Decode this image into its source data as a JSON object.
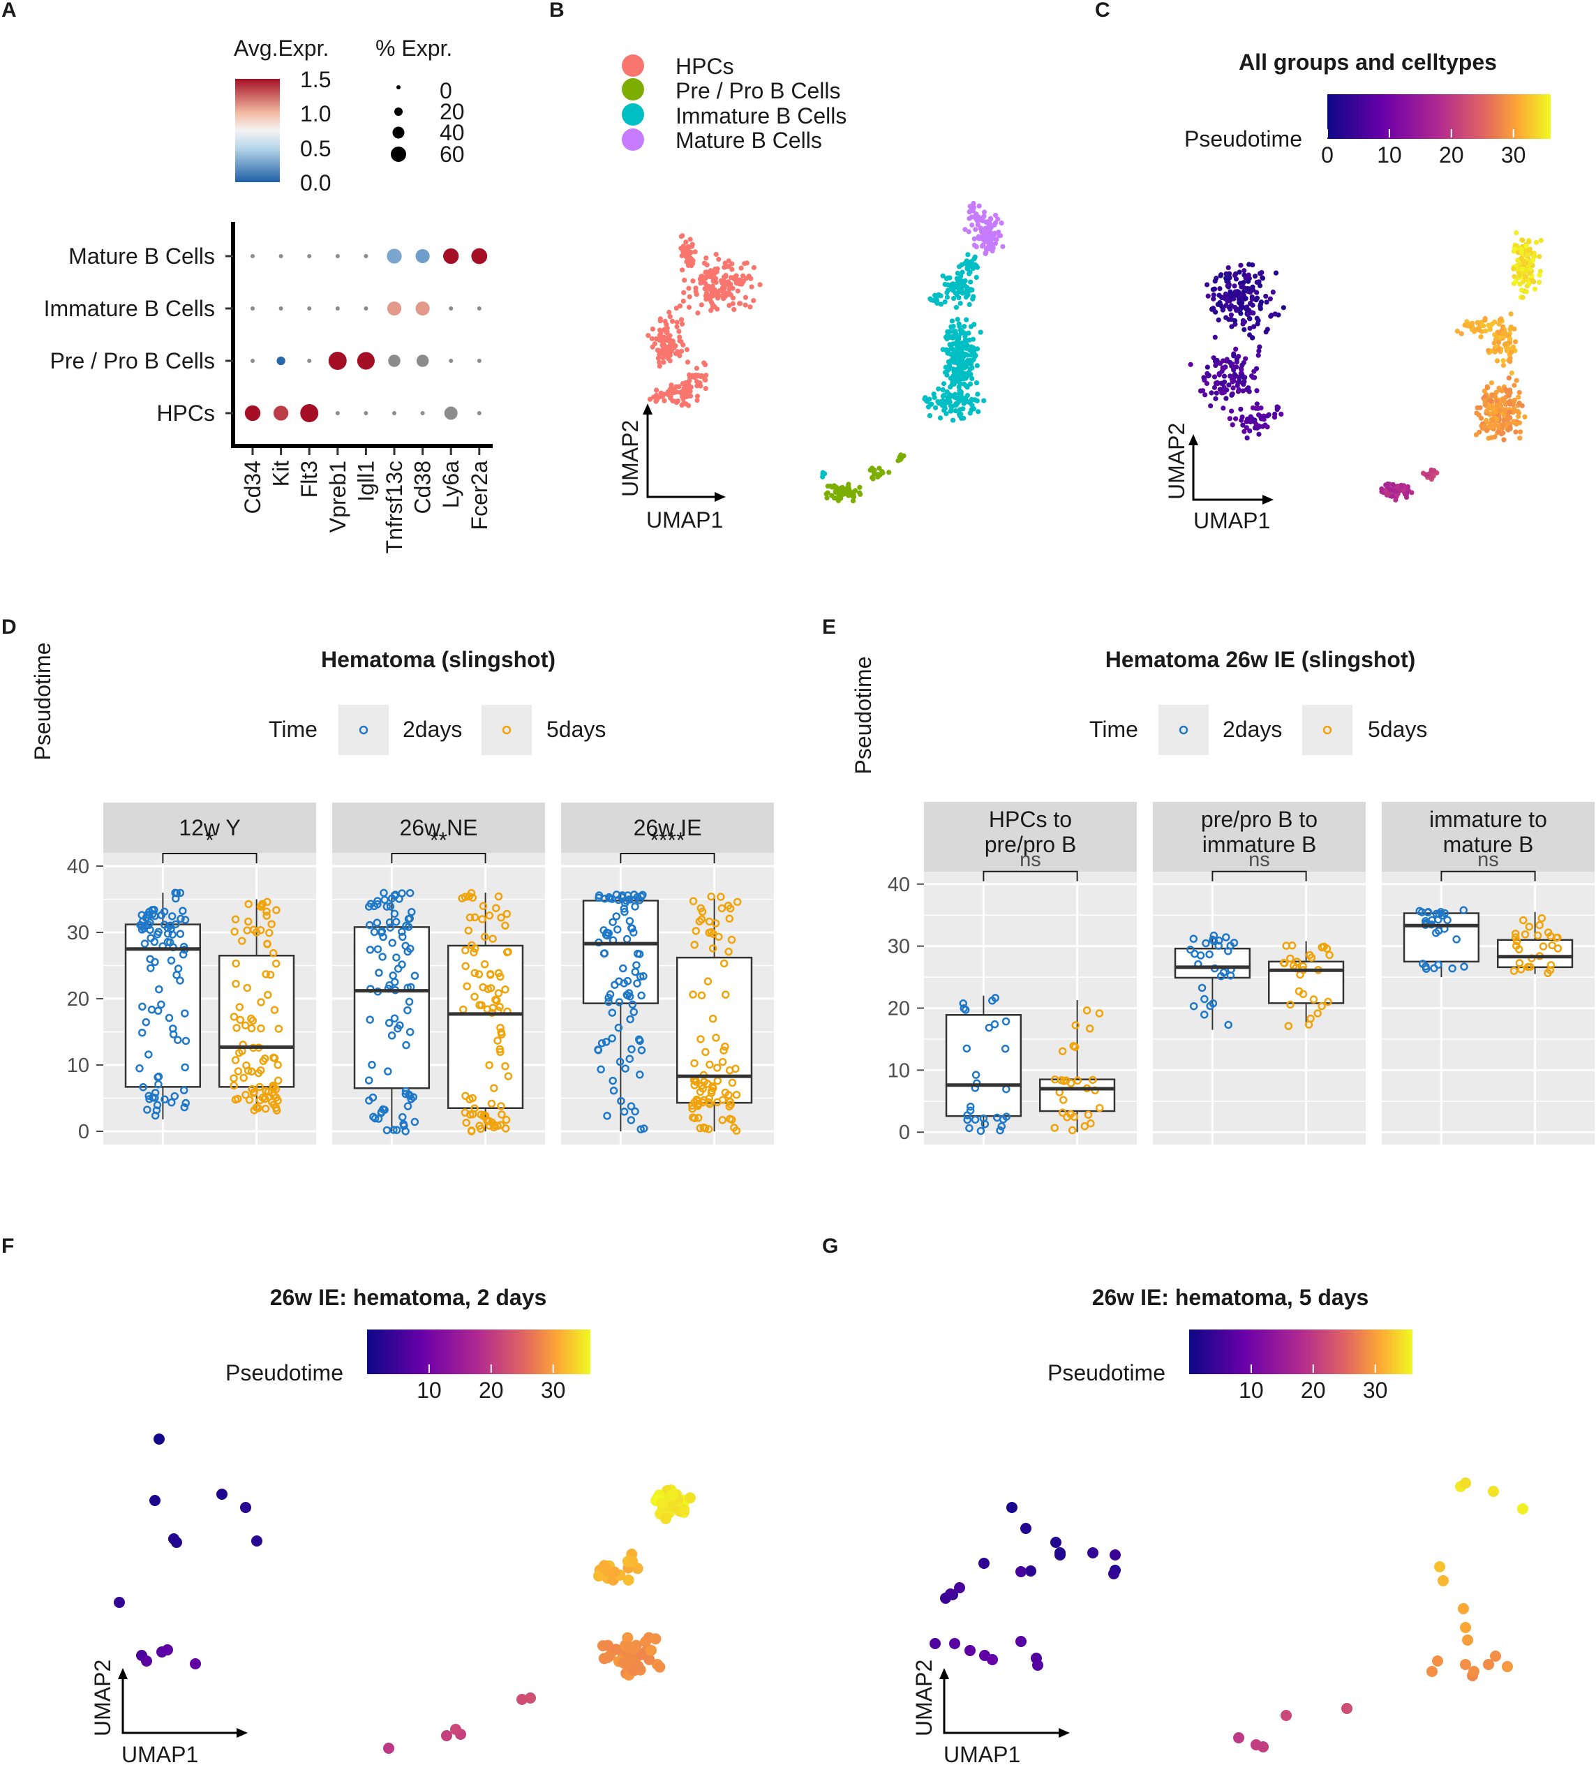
{
  "panel_labels": [
    "A",
    "B",
    "C",
    "D",
    "E",
    "F",
    "G"
  ],
  "colors": {
    "HPCs": "#f8766d",
    "Pre / Pro B Cells": "#7cae00",
    "Immature B Cells": "#00bfc4",
    "Mature B Cells": "#c77cff",
    "t2days": "#1f78c8",
    "t5days": "#f0a30a",
    "panel_bg": "#ebebeb",
    "strip_bg": "#d9d9d9"
  },
  "chart_data": [
    {
      "panel": "A",
      "type": "dotplot",
      "genes": [
        "Cd34",
        "Kit",
        "Flt3",
        "Vpreb1",
        "Igll1",
        "Tnfrsf13c",
        "Cd38",
        "Ly6a",
        "Fcer2a"
      ],
      "celltypes": [
        "Mature B Cells",
        "Immature B Cells",
        "Pre / Pro B Cells",
        "HPCs"
      ],
      "avg_expr": [
        [
          0,
          0,
          0,
          0,
          0,
          0.45,
          0.4,
          1.5,
          1.5
        ],
        [
          0,
          0,
          0,
          0,
          0,
          1.2,
          1.2,
          0,
          0
        ],
        [
          0,
          0.05,
          0,
          1.5,
          1.5,
          0,
          0,
          0,
          0
        ],
        [
          1.5,
          1.4,
          1.5,
          0,
          0,
          0,
          0,
          0,
          0
        ]
      ],
      "pct_expr": [
        [
          2,
          2,
          2,
          2,
          2,
          35,
          30,
          40,
          42
        ],
        [
          2,
          2,
          2,
          2,
          2,
          30,
          30,
          2,
          2
        ],
        [
          2,
          6,
          2,
          60,
          55,
          20,
          20,
          2,
          2
        ],
        [
          40,
          35,
          60,
          2,
          2,
          2,
          2,
          25,
          2
        ]
      ],
      "expressed": [
        [
          0,
          0,
          0,
          0,
          0,
          1,
          1,
          1,
          1
        ],
        [
          0,
          0,
          0,
          0,
          0,
          1,
          1,
          0,
          0
        ],
        [
          0,
          1,
          0,
          1,
          1,
          0,
          0,
          0,
          0
        ],
        [
          1,
          1,
          1,
          0,
          0,
          0,
          0,
          0,
          0
        ]
      ],
      "color_legend": {
        "title": "Avg.Expr.",
        "ticks": [
          "1.5",
          "1.0",
          "0.5",
          "0.0"
        ]
      },
      "size_legend": {
        "title": "% Expr.",
        "ticks": [
          "0",
          "20",
          "40",
          "60"
        ]
      }
    },
    {
      "panel": "B",
      "type": "scatter",
      "xlabel": "UMAP1",
      "ylabel": "UMAP2",
      "legend": [
        "HPCs",
        "Pre / Pro B Cells",
        "Immature B Cells",
        "Mature B Cells"
      ]
    },
    {
      "panel": "C",
      "type": "scatter",
      "title": "All groups and celltypes",
      "xlabel": "UMAP1",
      "ylabel": "UMAP2",
      "colorbar": {
        "title": "Pseudotime",
        "ticks": [
          "0",
          "10",
          "20",
          "30"
        ],
        "range": [
          0,
          36
        ]
      }
    },
    {
      "panel": "D",
      "type": "box",
      "title": "Hematoma (slingshot)",
      "ylabel": "Pseudotime",
      "ylim": [
        -2,
        42
      ],
      "yticks": [
        "0",
        "10",
        "20",
        "30",
        "40"
      ],
      "legend": {
        "title": "Time",
        "items": [
          "2days",
          "5days"
        ]
      },
      "facets": [
        {
          "label": "12w Y",
          "signif": "*",
          "boxes": [
            {
              "group": "2days",
              "q1": 6.7,
              "median": 27.5,
              "q3": 31.2,
              "min": 1.8,
              "max": 36
            },
            {
              "group": "5days",
              "q1": 6.7,
              "median": 12.7,
              "q3": 26.5,
              "min": 3,
              "max": 35
            }
          ]
        },
        {
          "label": "26w NE",
          "signif": "**",
          "boxes": [
            {
              "group": "2days",
              "q1": 6.5,
              "median": 21.2,
              "q3": 30.8,
              "min": 0,
              "max": 36
            },
            {
              "group": "5days",
              "q1": 3.5,
              "median": 17.7,
              "q3": 28,
              "min": 0,
              "max": 36
            }
          ]
        },
        {
          "label": "26w IE",
          "signif": "****",
          "boxes": [
            {
              "group": "2days",
              "q1": 19.3,
              "median": 28.3,
              "q3": 34.8,
              "min": 0,
              "max": 35.8
            },
            {
              "group": "5days",
              "q1": 4.3,
              "median": 8.3,
              "q3": 26.2,
              "min": 0,
              "max": 35.5
            }
          ]
        }
      ]
    },
    {
      "panel": "E",
      "type": "box",
      "title": "Hematoma 26w IE (slingshot)",
      "ylabel": "Pseudotime",
      "ylim": [
        -2,
        42
      ],
      "yticks": [
        "0",
        "10",
        "20",
        "30",
        "40"
      ],
      "legend": {
        "title": "Time",
        "items": [
          "2days",
          "5days"
        ]
      },
      "facets": [
        {
          "label": [
            "HPCs to",
            "pre/pro B"
          ],
          "signif": "ns",
          "boxes": [
            {
              "group": "2days",
              "q1": 2.6,
              "median": 7.6,
              "q3": 18.9,
              "min": 0,
              "max": 22
            },
            {
              "group": "5days",
              "q1": 3.4,
              "median": 7,
              "q3": 8.5,
              "min": 0,
              "max": 21.3
            }
          ]
        },
        {
          "label": [
            "pre/pro B to",
            "immature B"
          ],
          "signif": "ns",
          "boxes": [
            {
              "group": "2days",
              "q1": 24.9,
              "median": 26.6,
              "q3": 29.6,
              "min": 16.5,
              "max": 31.7
            },
            {
              "group": "5days",
              "q1": 20.8,
              "median": 26.1,
              "q3": 27.5,
              "min": 17,
              "max": 30.8
            }
          ]
        },
        {
          "label": [
            "immature to",
            "mature B"
          ],
          "signif": "ns",
          "boxes": [
            {
              "group": "2days",
              "q1": 27.5,
              "median": 33.3,
              "q3": 35.3,
              "min": 25,
              "max": 35.8
            },
            {
              "group": "5days",
              "q1": 26.6,
              "median": 28.3,
              "q3": 31,
              "min": 25.5,
              "max": 35.5
            }
          ]
        }
      ]
    },
    {
      "panel": "F",
      "type": "scatter",
      "title": "26w IE: hematoma, 2 days",
      "xlabel": "UMAP1",
      "ylabel": "UMAP2",
      "colorbar": {
        "title": "Pseudotime",
        "ticks": [
          "10",
          "20",
          "30"
        ],
        "range": [
          0,
          36
        ]
      }
    },
    {
      "panel": "G",
      "type": "scatter",
      "title": "26w IE: hematoma, 5 days",
      "xlabel": "UMAP1",
      "ylabel": "UMAP2",
      "colorbar": {
        "title": "Pseudotime",
        "ticks": [
          "10",
          "20",
          "30"
        ],
        "range": [
          0,
          36
        ]
      }
    }
  ]
}
